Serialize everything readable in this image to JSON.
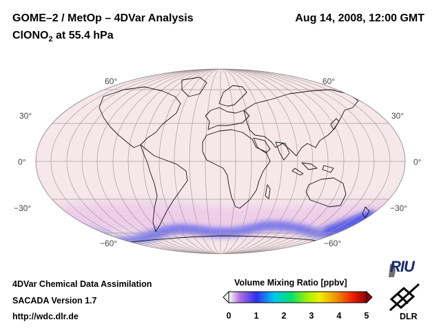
{
  "header": {
    "title_left": "GOME–2 / MetOp – 4DVar Analysis",
    "title_right": "Aug 14, 2008, 12:00 GMT",
    "species_prefix": "ClONO",
    "species_subscript": "2",
    "species_suffix": " at 55.4 hPa"
  },
  "map": {
    "projection": "Mollweide",
    "lat_labels": {
      "left": [
        "60°",
        "30°",
        "0°",
        "−30°",
        "−60°"
      ],
      "right": [
        "60°",
        "30°",
        "0°",
        "−30°",
        "−60°"
      ]
    },
    "lat_label_values": [
      60,
      30,
      0,
      -30,
      -60
    ],
    "background_color": "#f6e8ea",
    "enhanced_band": {
      "description_color": "#4a50f0",
      "latitude_range_deg": [
        -75,
        -50
      ]
    }
  },
  "footer": {
    "line1": "4DVar Chemical Data Assimilation",
    "line2": "SACADA Version 1.7",
    "line3": "http://wdc.dlr.de"
  },
  "colorbar": {
    "title": "Volume Mixing Ratio [ppbv]",
    "ticks": [
      "0",
      "1",
      "2",
      "3",
      "4",
      "5"
    ],
    "range": [
      0,
      5
    ],
    "colors": [
      "#ffffff",
      "#b070e0",
      "#3030f0",
      "#00c8f0",
      "#00e070",
      "#a0f000",
      "#f0f000",
      "#f09000",
      "#f02000",
      "#900000"
    ]
  },
  "logos": {
    "riu": "RIU",
    "dlr": "DLR"
  }
}
